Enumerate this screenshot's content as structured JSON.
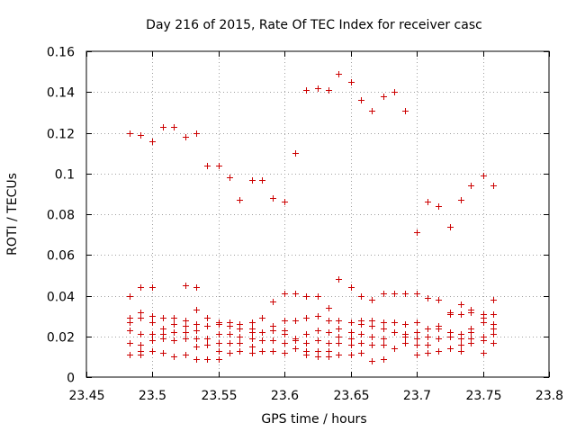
{
  "chart_data": {
    "type": "scatter",
    "title": "Day 216 of 2015, Rate Of TEC Index for receiver casc",
    "xlabel": "GPS time / hours",
    "ylabel": "ROTI / TECUs",
    "xlim": [
      23.45,
      23.8
    ],
    "ylim": [
      0,
      0.16
    ],
    "x_ticks": [
      "23.45",
      "23.5",
      "23.55",
      "23.6",
      "23.65",
      "23.7",
      "23.75",
      "23.8"
    ],
    "y_ticks": [
      "0",
      "0.02",
      "0.04",
      "0.06",
      "0.08",
      "0.1",
      "0.12",
      "0.14",
      "0.16"
    ],
    "grid": true,
    "marker": "plus",
    "color": "#cc0000",
    "series": [
      {
        "name": "ROTI",
        "points": [
          [
            23.483,
            0.12
          ],
          [
            23.491,
            0.119
          ],
          [
            23.5,
            0.116
          ],
          [
            23.508,
            0.123
          ],
          [
            23.516,
            0.123
          ],
          [
            23.525,
            0.118
          ],
          [
            23.533,
            0.12
          ],
          [
            23.541,
            0.104
          ],
          [
            23.55,
            0.104
          ],
          [
            23.558,
            0.098
          ],
          [
            23.566,
            0.087
          ],
          [
            23.575,
            0.097
          ],
          [
            23.583,
            0.097
          ],
          [
            23.591,
            0.088
          ],
          [
            23.6,
            0.086
          ],
          [
            23.608,
            0.11
          ],
          [
            23.616,
            0.141
          ],
          [
            23.625,
            0.142
          ],
          [
            23.633,
            0.141
          ],
          [
            23.641,
            0.149
          ],
          [
            23.65,
            0.145
          ],
          [
            23.658,
            0.136
          ],
          [
            23.666,
            0.131
          ],
          [
            23.675,
            0.138
          ],
          [
            23.683,
            0.14
          ],
          [
            23.691,
            0.131
          ],
          [
            23.7,
            0.071
          ],
          [
            23.708,
            0.086
          ],
          [
            23.716,
            0.084
          ],
          [
            23.725,
            0.074
          ],
          [
            23.733,
            0.087
          ],
          [
            23.741,
            0.094
          ],
          [
            23.75,
            0.099
          ],
          [
            23.758,
            0.094
          ],
          [
            23.483,
            0.04
          ],
          [
            23.491,
            0.044
          ],
          [
            23.5,
            0.044
          ],
          [
            23.525,
            0.045
          ],
          [
            23.533,
            0.044
          ],
          [
            23.591,
            0.037
          ],
          [
            23.6,
            0.041
          ],
          [
            23.608,
            0.041
          ],
          [
            23.616,
            0.04
          ],
          [
            23.625,
            0.04
          ],
          [
            23.633,
            0.034
          ],
          [
            23.641,
            0.048
          ],
          [
            23.65,
            0.044
          ],
          [
            23.658,
            0.04
          ],
          [
            23.666,
            0.038
          ],
          [
            23.675,
            0.041
          ],
          [
            23.683,
            0.041
          ],
          [
            23.691,
            0.041
          ],
          [
            23.7,
            0.041
          ],
          [
            23.708,
            0.039
          ],
          [
            23.716,
            0.038
          ],
          [
            23.725,
            0.032
          ],
          [
            23.733,
            0.036
          ],
          [
            23.741,
            0.033
          ],
          [
            23.75,
            0.031
          ],
          [
            23.758,
            0.038
          ],
          [
            23.483,
            0.029
          ],
          [
            23.483,
            0.027
          ],
          [
            23.483,
            0.023
          ],
          [
            23.483,
            0.017
          ],
          [
            23.483,
            0.011
          ],
          [
            23.491,
            0.032
          ],
          [
            23.491,
            0.029
          ],
          [
            23.491,
            0.021
          ],
          [
            23.491,
            0.016
          ],
          [
            23.491,
            0.013
          ],
          [
            23.491,
            0.011
          ],
          [
            23.5,
            0.03
          ],
          [
            23.5,
            0.027
          ],
          [
            23.5,
            0.021
          ],
          [
            23.5,
            0.018
          ],
          [
            23.5,
            0.013
          ],
          [
            23.508,
            0.029
          ],
          [
            23.508,
            0.024
          ],
          [
            23.508,
            0.021
          ],
          [
            23.508,
            0.019
          ],
          [
            23.508,
            0.012
          ],
          [
            23.516,
            0.029
          ],
          [
            23.516,
            0.026
          ],
          [
            23.516,
            0.022
          ],
          [
            23.516,
            0.018
          ],
          [
            23.516,
            0.01
          ],
          [
            23.525,
            0.028
          ],
          [
            23.525,
            0.025
          ],
          [
            23.525,
            0.022
          ],
          [
            23.525,
            0.019
          ],
          [
            23.525,
            0.011
          ],
          [
            23.533,
            0.033
          ],
          [
            23.533,
            0.026
          ],
          [
            23.533,
            0.023
          ],
          [
            23.533,
            0.019
          ],
          [
            23.533,
            0.015
          ],
          [
            23.533,
            0.009
          ],
          [
            23.541,
            0.029
          ],
          [
            23.541,
            0.025
          ],
          [
            23.541,
            0.019
          ],
          [
            23.541,
            0.016
          ],
          [
            23.541,
            0.009
          ],
          [
            23.55,
            0.027
          ],
          [
            23.55,
            0.026
          ],
          [
            23.55,
            0.021
          ],
          [
            23.55,
            0.017
          ],
          [
            23.55,
            0.013
          ],
          [
            23.55,
            0.009
          ],
          [
            23.558,
            0.027
          ],
          [
            23.558,
            0.025
          ],
          [
            23.558,
            0.021
          ],
          [
            23.558,
            0.017
          ],
          [
            23.558,
            0.012
          ],
          [
            23.566,
            0.026
          ],
          [
            23.566,
            0.024
          ],
          [
            23.566,
            0.02
          ],
          [
            23.566,
            0.017
          ],
          [
            23.566,
            0.013
          ],
          [
            23.575,
            0.027
          ],
          [
            23.575,
            0.024
          ],
          [
            23.575,
            0.022
          ],
          [
            23.575,
            0.019
          ],
          [
            23.575,
            0.015
          ],
          [
            23.575,
            0.012
          ],
          [
            23.583,
            0.029
          ],
          [
            23.583,
            0.022
          ],
          [
            23.583,
            0.018
          ],
          [
            23.583,
            0.013
          ],
          [
            23.591,
            0.025
          ],
          [
            23.591,
            0.023
          ],
          [
            23.591,
            0.018
          ],
          [
            23.591,
            0.013
          ],
          [
            23.6,
            0.028
          ],
          [
            23.6,
            0.023
          ],
          [
            23.6,
            0.021
          ],
          [
            23.6,
            0.017
          ],
          [
            23.6,
            0.012
          ],
          [
            23.608,
            0.028
          ],
          [
            23.608,
            0.019
          ],
          [
            23.608,
            0.018
          ],
          [
            23.608,
            0.014
          ],
          [
            23.616,
            0.029
          ],
          [
            23.616,
            0.021
          ],
          [
            23.616,
            0.017
          ],
          [
            23.616,
            0.013
          ],
          [
            23.616,
            0.011
          ],
          [
            23.625,
            0.03
          ],
          [
            23.625,
            0.023
          ],
          [
            23.625,
            0.018
          ],
          [
            23.625,
            0.013
          ],
          [
            23.625,
            0.01
          ],
          [
            23.633,
            0.028
          ],
          [
            23.633,
            0.022
          ],
          [
            23.633,
            0.017
          ],
          [
            23.633,
            0.013
          ],
          [
            23.633,
            0.01
          ],
          [
            23.641,
            0.028
          ],
          [
            23.641,
            0.024
          ],
          [
            23.641,
            0.02
          ],
          [
            23.641,
            0.017
          ],
          [
            23.641,
            0.011
          ],
          [
            23.65,
            0.027
          ],
          [
            23.65,
            0.022
          ],
          [
            23.65,
            0.019
          ],
          [
            23.65,
            0.016
          ],
          [
            23.65,
            0.011
          ],
          [
            23.658,
            0.028
          ],
          [
            23.658,
            0.026
          ],
          [
            23.658,
            0.021
          ],
          [
            23.658,
            0.017
          ],
          [
            23.658,
            0.012
          ],
          [
            23.666,
            0.028
          ],
          [
            23.666,
            0.025
          ],
          [
            23.666,
            0.02
          ],
          [
            23.666,
            0.016
          ],
          [
            23.666,
            0.008
          ],
          [
            23.675,
            0.027
          ],
          [
            23.675,
            0.024
          ],
          [
            23.675,
            0.019
          ],
          [
            23.675,
            0.016
          ],
          [
            23.675,
            0.009
          ],
          [
            23.683,
            0.027
          ],
          [
            23.683,
            0.022
          ],
          [
            23.683,
            0.014
          ],
          [
            23.691,
            0.026
          ],
          [
            23.691,
            0.021
          ],
          [
            23.691,
            0.02
          ],
          [
            23.691,
            0.017
          ],
          [
            23.7,
            0.027
          ],
          [
            23.7,
            0.022
          ],
          [
            23.7,
            0.019
          ],
          [
            23.7,
            0.016
          ],
          [
            23.7,
            0.011
          ],
          [
            23.708,
            0.024
          ],
          [
            23.708,
            0.02
          ],
          [
            23.708,
            0.016
          ],
          [
            23.708,
            0.012
          ],
          [
            23.716,
            0.025
          ],
          [
            23.716,
            0.024
          ],
          [
            23.716,
            0.019
          ],
          [
            23.716,
            0.013
          ],
          [
            23.725,
            0.031
          ],
          [
            23.725,
            0.022
          ],
          [
            23.725,
            0.02
          ],
          [
            23.725,
            0.014
          ],
          [
            23.733,
            0.031
          ],
          [
            23.733,
            0.021
          ],
          [
            23.733,
            0.019
          ],
          [
            23.733,
            0.016
          ],
          [
            23.733,
            0.013
          ],
          [
            23.741,
            0.032
          ],
          [
            23.741,
            0.024
          ],
          [
            23.741,
            0.022
          ],
          [
            23.741,
            0.019
          ],
          [
            23.741,
            0.017
          ],
          [
            23.75,
            0.029
          ],
          [
            23.75,
            0.027
          ],
          [
            23.75,
            0.02
          ],
          [
            23.75,
            0.018
          ],
          [
            23.75,
            0.012
          ],
          [
            23.758,
            0.031
          ],
          [
            23.758,
            0.026
          ],
          [
            23.758,
            0.024
          ],
          [
            23.758,
            0.021
          ],
          [
            23.758,
            0.017
          ]
        ]
      }
    ]
  }
}
